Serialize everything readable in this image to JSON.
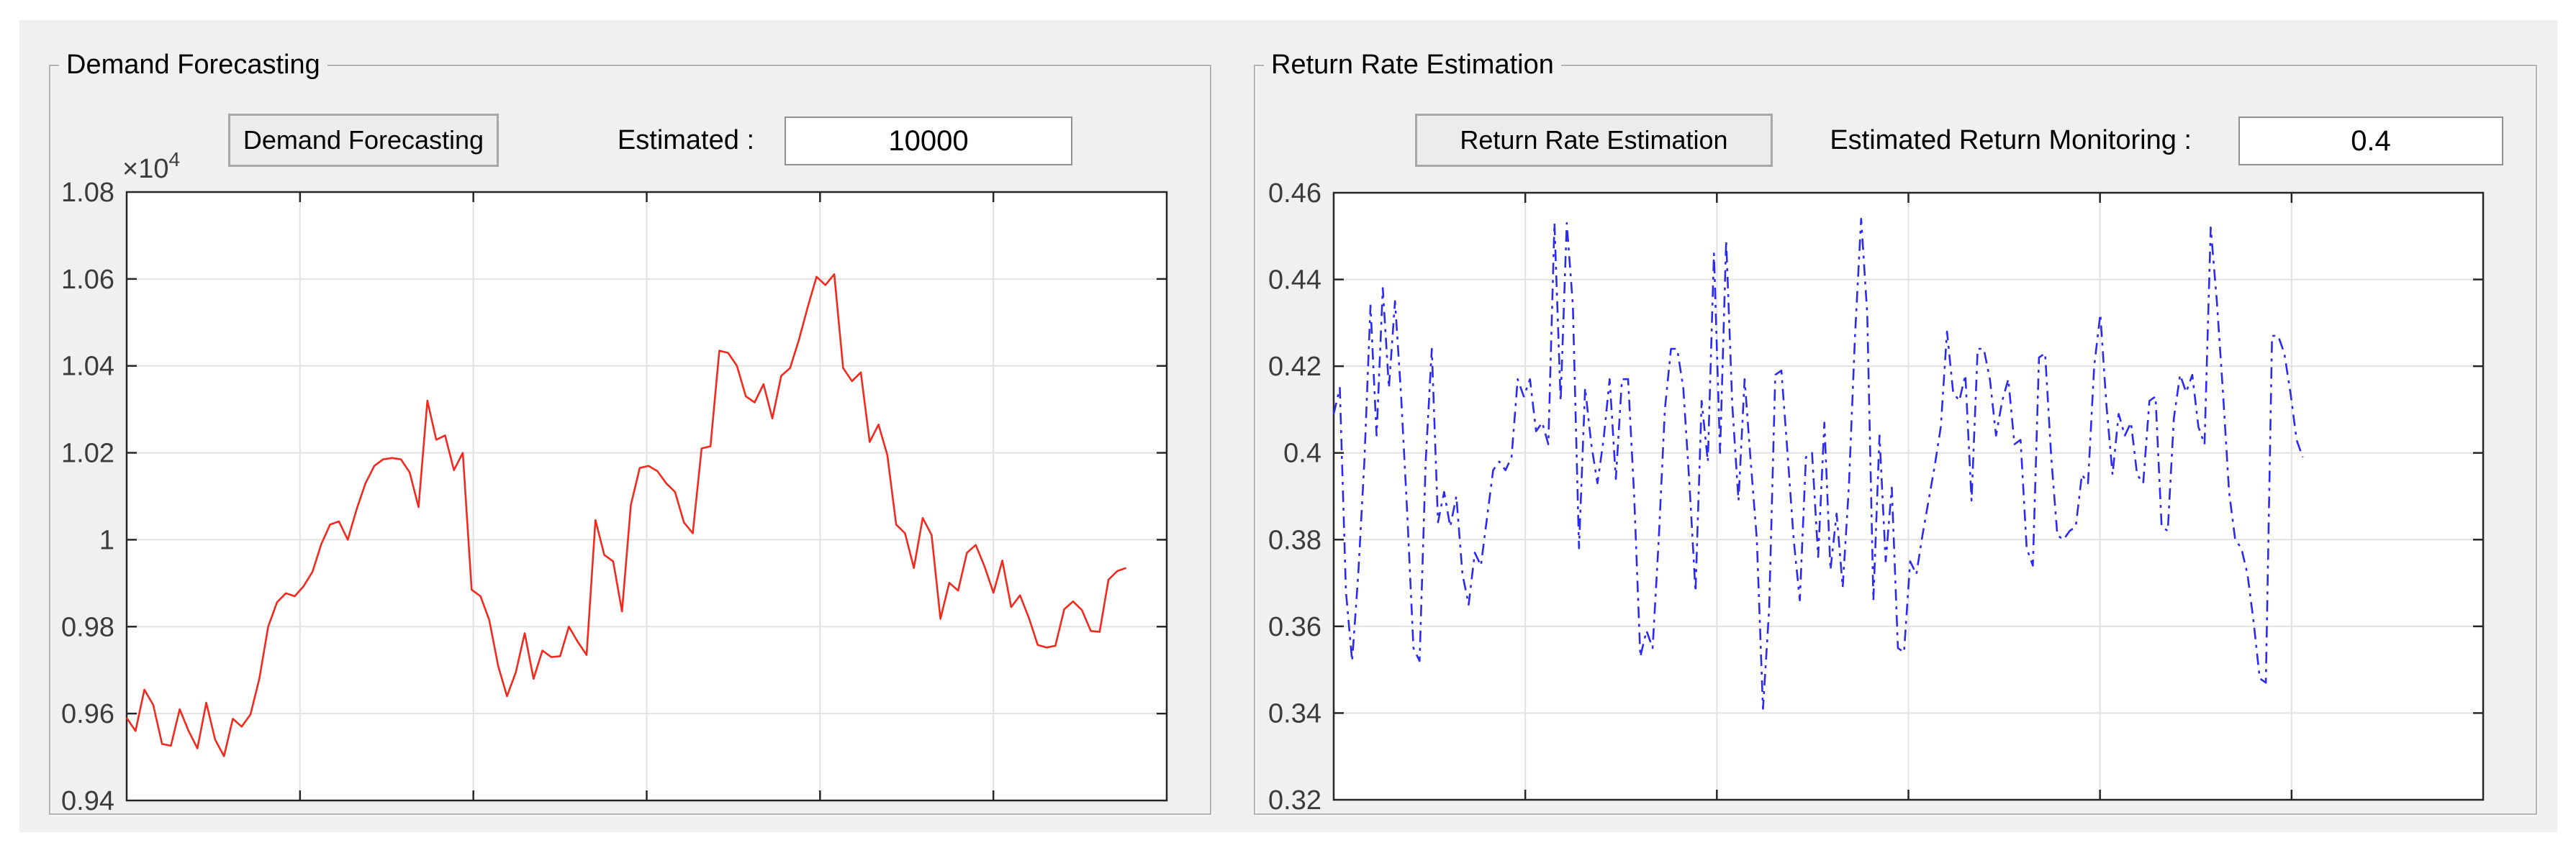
{
  "window": {
    "app_background": "#f0f0f0",
    "page_background": "#ffffff"
  },
  "panels": [
    {
      "title": "Demand Forecasting",
      "button_label": "Demand Forecasting",
      "field_label": "Estimated :",
      "field_value": "10000"
    },
    {
      "title": "Return Rate Estimation",
      "button_label": "Return Rate Estimation",
      "field_label": "Estimated Return Monitoring :",
      "field_value": "0.4"
    }
  ],
  "chart_data": [
    {
      "type": "line",
      "title": "",
      "xlabel": "",
      "ylabel": "",
      "series_name": "demand-forecast",
      "line_color": "#f3291d",
      "line_style": "solid",
      "dash": "",
      "grid_color": "#e2e2e2",
      "axis_color": "#262626",
      "ylim": [
        9400,
        10800
      ],
      "y_tick_labels": [
        "1.08",
        "1.06",
        "1.04",
        "1.02",
        "1",
        "0.98",
        "0.96",
        "0.94"
      ],
      "exponent_label": {
        "base": "×10",
        "sup": "4"
      },
      "x_intervals": 6,
      "x_tick_labels_shown": false,
      "grid": true,
      "legend": "none",
      "data_end_frac": 0.961,
      "values": [
        9590,
        9560,
        9655,
        9620,
        9530,
        9526,
        9610,
        9560,
        9520,
        9625,
        9540,
        9502,
        9588,
        9570,
        9598,
        9680,
        9800,
        9856,
        9877,
        9870,
        9893,
        9926,
        9990,
        10035,
        10042,
        10000,
        10070,
        10130,
        10170,
        10185,
        10188,
        10185,
        10155,
        10075,
        10320,
        10230,
        10240,
        10160,
        10200,
        9885,
        9870,
        9815,
        9710,
        9640,
        9695,
        9785,
        9680,
        9745,
        9730,
        9732,
        9800,
        9765,
        9735,
        10045,
        9965,
        9950,
        9835,
        10080,
        10165,
        10170,
        10158,
        10130,
        10110,
        10040,
        10015,
        10210,
        10215,
        10435,
        10430,
        10400,
        10330,
        10316,
        10358,
        10279,
        10377,
        10395,
        10460,
        10535,
        10605,
        10586,
        10611,
        10395,
        10365,
        10385,
        10225,
        10265,
        10195,
        10035,
        10015,
        9935,
        10050,
        10011,
        9818,
        9901,
        9883,
        9970,
        9988,
        9938,
        9878,
        9952,
        9845,
        9872,
        9820,
        9758,
        9752,
        9756,
        9840,
        9858,
        9838,
        9790,
        9788,
        9908,
        9928,
        9935
      ]
    },
    {
      "type": "line",
      "title": "",
      "xlabel": "",
      "ylabel": "",
      "series_name": "return-rate",
      "line_color": "#2a2af0",
      "line_style": "dash-dot",
      "dash": "16 8 4 8",
      "grid_color": "#e2e2e2",
      "axis_color": "#262626",
      "ylim": [
        0.32,
        0.46
      ],
      "y_tick_labels": [
        "0.46",
        "0.44",
        "0.42",
        "0.4",
        "0.38",
        "0.36",
        "0.34",
        "0.32"
      ],
      "exponent_label": null,
      "x_intervals": 6,
      "x_tick_labels_shown": false,
      "grid": true,
      "legend": "none",
      "data_end_frac": 0.843,
      "values": [
        0.409,
        0.415,
        0.368,
        0.352,
        0.372,
        0.398,
        0.434,
        0.404,
        0.438,
        0.415,
        0.435,
        0.413,
        0.386,
        0.355,
        0.352,
        0.398,
        0.424,
        0.384,
        0.391,
        0.383,
        0.39,
        0.372,
        0.365,
        0.377,
        0.374,
        0.385,
        0.396,
        0.398,
        0.396,
        0.399,
        0.417,
        0.413,
        0.417,
        0.405,
        0.407,
        0.402,
        0.453,
        0.412,
        0.453,
        0.434,
        0.378,
        0.415,
        0.402,
        0.393,
        0.403,
        0.417,
        0.394,
        0.417,
        0.417,
        0.39,
        0.353,
        0.359,
        0.355,
        0.38,
        0.41,
        0.424,
        0.424,
        0.415,
        0.393,
        0.368,
        0.412,
        0.398,
        0.446,
        0.4,
        0.449,
        0.411,
        0.389,
        0.417,
        0.398,
        0.38,
        0.341,
        0.364,
        0.418,
        0.419,
        0.4,
        0.38,
        0.366,
        0.399,
        0.4,
        0.376,
        0.407,
        0.373,
        0.386,
        0.369,
        0.392,
        0.427,
        0.454,
        0.432,
        0.366,
        0.404,
        0.375,
        0.392,
        0.355,
        0.354,
        0.375,
        0.372,
        0.381,
        0.389,
        0.397,
        0.406,
        0.428,
        0.414,
        0.412,
        0.418,
        0.389,
        0.424,
        0.424,
        0.417,
        0.404,
        0.412,
        0.417,
        0.402,
        0.403,
        0.378,
        0.374,
        0.422,
        0.423,
        0.399,
        0.381,
        0.38,
        0.382,
        0.383,
        0.395,
        0.393,
        0.42,
        0.432,
        0.411,
        0.395,
        0.409,
        0.404,
        0.407,
        0.395,
        0.393,
        0.412,
        0.413,
        0.383,
        0.382,
        0.408,
        0.418,
        0.414,
        0.418,
        0.406,
        0.402,
        0.452,
        0.435,
        0.414,
        0.391,
        0.38,
        0.378,
        0.372,
        0.361,
        0.348,
        0.347,
        0.427,
        0.427,
        0.423,
        0.414,
        0.403,
        0.399
      ]
    }
  ]
}
